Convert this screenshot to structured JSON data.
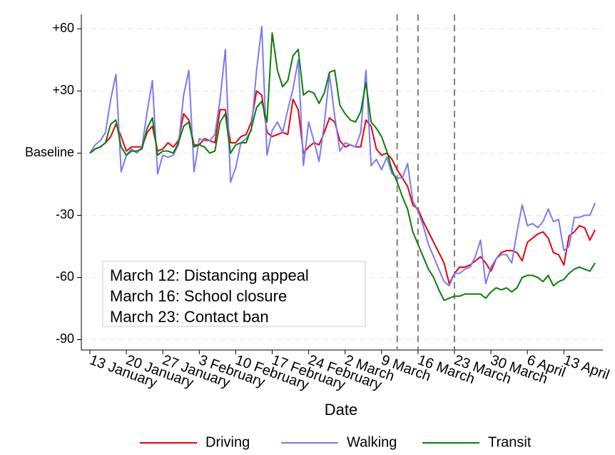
{
  "chart_data": {
    "type": "line",
    "x_label": "Date",
    "categories": [
      "13 January",
      null,
      null,
      null,
      null,
      null,
      null,
      "20 January",
      null,
      null,
      null,
      null,
      null,
      null,
      "27 January",
      null,
      null,
      null,
      null,
      null,
      null,
      "3 February",
      null,
      null,
      null,
      null,
      null,
      null,
      "10 February",
      null,
      null,
      null,
      null,
      null,
      null,
      "17 February",
      null,
      null,
      null,
      null,
      null,
      null,
      "24 February",
      null,
      null,
      null,
      null,
      null,
      null,
      "2 March",
      null,
      null,
      null,
      null,
      null,
      null,
      "9 March",
      null,
      null,
      null,
      null,
      null,
      null,
      "16 March",
      null,
      null,
      null,
      null,
      null,
      null,
      "23 March",
      null,
      null,
      null,
      null,
      null,
      null,
      "30 March",
      null,
      null,
      null,
      null,
      null,
      null,
      "6 April",
      null,
      null,
      null,
      null,
      null,
      null,
      "13 April",
      null,
      null,
      null,
      null,
      null,
      null
    ],
    "series": [
      {
        "name": "Driving",
        "color": "#e8000b",
        "values": [
          0,
          2,
          3,
          5,
          8,
          14,
          8,
          1,
          3,
          3,
          3,
          10,
          13,
          1,
          2,
          5,
          3,
          6,
          19,
          16,
          4,
          4,
          7,
          6,
          5,
          21,
          21,
          5,
          5,
          8,
          9,
          15,
          30,
          28,
          10,
          8,
          9,
          10,
          9,
          26,
          21,
          0,
          3,
          5,
          4,
          10,
          17,
          15,
          6,
          3,
          4,
          3,
          3,
          16,
          13,
          2,
          -1,
          0,
          -3,
          -8,
          -12,
          -16,
          -25,
          -27,
          -33,
          -38,
          -43,
          -48,
          -53,
          -63,
          -58,
          -55,
          -55,
          -54,
          -52,
          -50,
          -53,
          -57,
          -51,
          -48,
          -47,
          -47,
          -48,
          -52,
          -43,
          -41,
          -39,
          -38,
          -41,
          -48,
          -49,
          -54,
          -40,
          -38,
          -35,
          -36,
          -42,
          -37
        ]
      },
      {
        "name": "Walking",
        "color": "#7b7bf2",
        "values": [
          0,
          4,
          6,
          10,
          26,
          38,
          -9,
          -1,
          2,
          0,
          3,
          20,
          35,
          -10,
          -1,
          -2,
          -1,
          4,
          28,
          40,
          -9,
          7,
          6,
          6,
          9,
          26,
          50,
          -14,
          -7,
          5,
          7,
          11,
          40,
          61,
          -1,
          11,
          15,
          10,
          21,
          31,
          45,
          -6,
          15,
          6,
          -4,
          14,
          38,
          18,
          1,
          5,
          4,
          3,
          10,
          40,
          -6,
          -3,
          -8,
          -2,
          -10,
          -12,
          -12,
          -5,
          -23,
          -28,
          -35,
          -44,
          -50,
          -56,
          -62,
          -64,
          -58,
          -58,
          -56,
          -55,
          -50,
          -42,
          -63,
          -55,
          -51,
          -49,
          -49,
          -53,
          -38,
          -25,
          -35,
          -34,
          -36,
          -33,
          -27,
          -33,
          -32,
          -47,
          -45,
          -31,
          -31,
          -30,
          -30,
          -24
        ]
      },
      {
        "name": "Transit",
        "color": "#0a7d0a",
        "values": [
          0,
          2,
          3,
          5,
          14,
          16,
          3,
          -1,
          1,
          1,
          2,
          12,
          17,
          -1,
          1,
          1,
          0,
          5,
          13,
          15,
          3,
          4,
          3,
          0,
          1,
          15,
          19,
          0,
          4,
          5,
          5,
          12,
          22,
          25,
          15,
          58,
          40,
          32,
          35,
          47,
          50,
          28,
          30,
          29,
          24,
          29,
          39,
          40,
          23,
          19,
          16,
          15,
          20,
          34,
          15,
          12,
          8,
          1,
          -8,
          -14,
          -21,
          -27,
          -38,
          -44,
          -50,
          -56,
          -60,
          -66,
          -71,
          -70,
          -69,
          -69,
          -68,
          -68,
          -68,
          -68,
          -70,
          -67,
          -65,
          -66,
          -65,
          -67,
          -65,
          -60,
          -59,
          -59,
          -60,
          -62,
          -59,
          -64,
          -62,
          -61,
          -58,
          -56,
          -55,
          -56,
          -57,
          -53
        ]
      }
    ],
    "ylim": [
      -95,
      67
    ],
    "yticks": [
      {
        "value": 60,
        "label": "+60"
      },
      {
        "value": 30,
        "label": "+30"
      },
      {
        "value": 0,
        "label": "Baseline"
      },
      -30,
      -60,
      -90
    ],
    "grid": true,
    "event_lines": [
      59,
      63,
      70
    ],
    "annotations": [
      "March 12: Distancing appeal",
      "March 16: School closure",
      "March 23: Contact ban"
    ],
    "legend": "bottom"
  }
}
